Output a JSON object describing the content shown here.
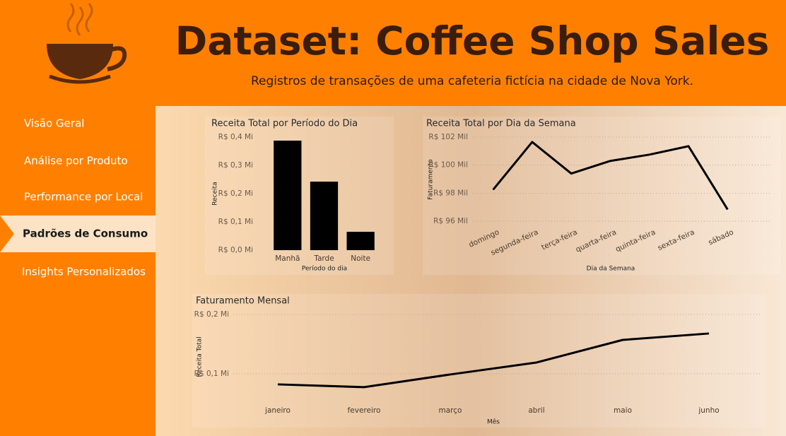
{
  "header": {
    "title": "Dataset: Coffee Shop Sales",
    "subtitle": "Registros de transações de uma cafeteria fictícia na cidade de Nova York."
  },
  "nav": {
    "items": [
      "Visão Geral",
      "Análise por Produto",
      "Performance por Local",
      "Padrões de Consumo",
      "Insights Personalizados"
    ],
    "selected": 3
  },
  "chart_data": [
    {
      "type": "bar",
      "title": "Receita Total por Período do Dia",
      "x_label": "Período do dia",
      "y_label": "Receita",
      "categories": [
        "Manhã",
        "Tarde",
        "Noite"
      ],
      "values": [
        387500,
        242500,
        65000
      ],
      "color": "#000000",
      "ylim": [
        0,
        400000
      ],
      "grid": false,
      "yticks": [
        {
          "value": 0,
          "label": "R$ 0,0 Mi"
        },
        {
          "value": 100000,
          "label": "R$ 0,1 Mi"
        },
        {
          "value": 200000,
          "label": "R$ 0,2 Mi"
        },
        {
          "value": 300000,
          "label": "R$ 0,3 Mi"
        },
        {
          "value": 400000,
          "label": "R$ 0,4 Mi"
        }
      ]
    },
    {
      "type": "line",
      "title": "Receita Total por Dia da Semana",
      "x_label": "Dia da Semana",
      "y_label": "Faturamento",
      "categories": [
        "domingo",
        "segunda-feira",
        "terça-feira",
        "quarta-feira",
        "quinta-feira",
        "sexta-feira",
        "sábado"
      ],
      "values": [
        98250,
        101650,
        99400,
        100300,
        100750,
        101350,
        96840
      ],
      "color": "#000000",
      "ylim": [
        95500,
        102000
      ],
      "grid": true,
      "yticks": [
        {
          "value": 96000,
          "label": "R$ 96 Mil"
        },
        {
          "value": 98000,
          "label": "R$ 98 Mil"
        },
        {
          "value": 100000,
          "label": "R$ 100 Mil"
        },
        {
          "value": 102000,
          "label": "R$ 102 Mil"
        }
      ]
    },
    {
      "type": "line",
      "title": "Faturamento Mensal",
      "x_label": "Mês",
      "y_label": "Receita Total",
      "categories": [
        "janeiro",
        "fevereiro",
        "março",
        "abril",
        "maio",
        "junho"
      ],
      "values": [
        82100,
        77400,
        98800,
        119000,
        157100,
        167900
      ],
      "color": "#000000",
      "ylim": [
        57000,
        200000
      ],
      "grid": true,
      "yticks": [
        {
          "value": 100000,
          "label": "R$ 0,1 Mi"
        },
        {
          "value": 200000,
          "label": "R$ 0,2 Mi"
        }
      ]
    }
  ]
}
